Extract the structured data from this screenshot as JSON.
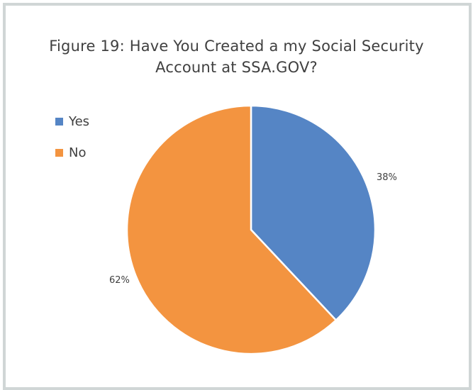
{
  "chart_data": {
    "type": "pie",
    "title": "Figure 19: Have You Created a my Social Security Account at SSA.GOV?",
    "title_lines": [
      "Figure 19: Have You Created a my Social Security",
      "Account at SSA.GOV?"
    ],
    "categories": [
      "Yes",
      "No"
    ],
    "values": [
      38,
      62
    ],
    "data_labels": [
      "38%",
      "62%"
    ],
    "colors": [
      "#5585c5",
      "#f39440"
    ],
    "legend_position": "left"
  }
}
